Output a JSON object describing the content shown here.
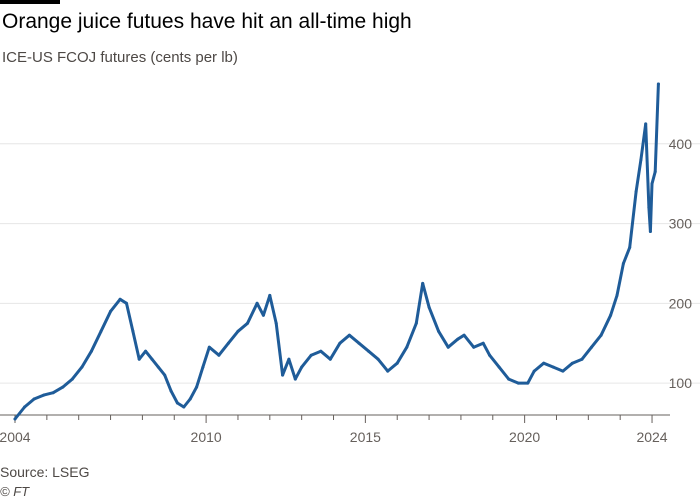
{
  "header": {
    "title": "Orange juice futues have hit an all-time high",
    "subtitle": "ICE-US FCOJ futures (cents per lb)"
  },
  "footer": {
    "source": "Source: LSEG",
    "copyright": "© FT"
  },
  "colors": {
    "line": "#1f5c99",
    "grid": "#e6e6e6",
    "axis_text": "#66605c",
    "accent_bar": "#000000"
  },
  "chart_data": {
    "type": "line",
    "title": "Orange juice futues have hit an all-time high",
    "subtitle": "ICE-US FCOJ futures (cents per lb)",
    "xlabel": "",
    "ylabel": "",
    "grid": true,
    "y_axis_side": "right",
    "xlim": [
      2004.0,
      2024.25
    ],
    "ylim": [
      60,
      480
    ],
    "x_ticks": [
      2004,
      2010,
      2015,
      2020,
      2024
    ],
    "x_tick_labels": [
      "2004",
      "2010",
      "2015",
      "2020",
      "2024"
    ],
    "y_ticks": [
      100,
      200,
      300,
      400
    ],
    "y_tick_labels": [
      "100",
      "200",
      "300",
      "400"
    ],
    "series": [
      {
        "values": [
          [
            2004.0,
            55
          ],
          [
            2004.3,
            70
          ],
          [
            2004.6,
            80
          ],
          [
            2004.9,
            85
          ],
          [
            2005.2,
            88
          ],
          [
            2005.5,
            95
          ],
          [
            2005.8,
            105
          ],
          [
            2006.1,
            120
          ],
          [
            2006.4,
            140
          ],
          [
            2006.7,
            165
          ],
          [
            2007.0,
            190
          ],
          [
            2007.3,
            205
          ],
          [
            2007.5,
            200
          ],
          [
            2007.7,
            165
          ],
          [
            2007.9,
            130
          ],
          [
            2008.1,
            140
          ],
          [
            2008.3,
            130
          ],
          [
            2008.5,
            120
          ],
          [
            2008.7,
            110
          ],
          [
            2008.9,
            90
          ],
          [
            2009.1,
            75
          ],
          [
            2009.3,
            70
          ],
          [
            2009.5,
            80
          ],
          [
            2009.7,
            95
          ],
          [
            2009.9,
            120
          ],
          [
            2010.1,
            145
          ],
          [
            2010.4,
            135
          ],
          [
            2010.7,
            150
          ],
          [
            2011.0,
            165
          ],
          [
            2011.3,
            175
          ],
          [
            2011.6,
            200
          ],
          [
            2011.8,
            185
          ],
          [
            2012.0,
            210
          ],
          [
            2012.2,
            175
          ],
          [
            2012.4,
            110
          ],
          [
            2012.6,
            130
          ],
          [
            2012.8,
            105
          ],
          [
            2013.0,
            120
          ],
          [
            2013.3,
            135
          ],
          [
            2013.6,
            140
          ],
          [
            2013.9,
            130
          ],
          [
            2014.2,
            150
          ],
          [
            2014.5,
            160
          ],
          [
            2014.8,
            150
          ],
          [
            2015.1,
            140
          ],
          [
            2015.4,
            130
          ],
          [
            2015.7,
            115
          ],
          [
            2016.0,
            125
          ],
          [
            2016.3,
            145
          ],
          [
            2016.6,
            175
          ],
          [
            2016.8,
            225
          ],
          [
            2017.0,
            195
          ],
          [
            2017.3,
            165
          ],
          [
            2017.6,
            145
          ],
          [
            2017.9,
            155
          ],
          [
            2018.1,
            160
          ],
          [
            2018.4,
            145
          ],
          [
            2018.7,
            150
          ],
          [
            2018.9,
            135
          ],
          [
            2019.2,
            120
          ],
          [
            2019.5,
            105
          ],
          [
            2019.8,
            100
          ],
          [
            2020.1,
            100
          ],
          [
            2020.3,
            115
          ],
          [
            2020.6,
            125
          ],
          [
            2020.9,
            120
          ],
          [
            2021.2,
            115
          ],
          [
            2021.5,
            125
          ],
          [
            2021.8,
            130
          ],
          [
            2022.1,
            145
          ],
          [
            2022.4,
            160
          ],
          [
            2022.7,
            185
          ],
          [
            2022.9,
            210
          ],
          [
            2023.1,
            250
          ],
          [
            2023.3,
            270
          ],
          [
            2023.5,
            340
          ],
          [
            2023.65,
            380
          ],
          [
            2023.8,
            425
          ],
          [
            2023.9,
            320
          ],
          [
            2023.95,
            290
          ],
          [
            2024.0,
            350
          ],
          [
            2024.1,
            365
          ],
          [
            2024.2,
            475
          ]
        ]
      }
    ]
  }
}
